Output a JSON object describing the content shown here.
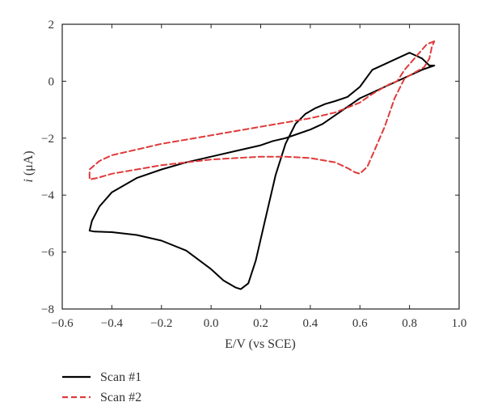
{
  "chart_data": {
    "type": "line",
    "xlabel": "E/V (vs SCE)",
    "ylabel_italic": "i",
    "ylabel_rest": " (μA)",
    "xlim": [
      -0.6,
      1.0
    ],
    "ylim": [
      -8,
      2
    ],
    "xticks": [
      "−0.6",
      "−0.4",
      "−0.2",
      "0.0",
      "0.2",
      "0.4",
      "0.6",
      "0.8",
      "1.0"
    ],
    "yticks": [
      "−8",
      "−6",
      "−4",
      "−2",
      "0",
      "2"
    ],
    "grid": false,
    "legend_position": "bottom-left, below plot",
    "series": [
      {
        "name": "Scan #1",
        "color": "#000000",
        "dash": "solid",
        "x": [
          0.9,
          0.85,
          0.8,
          0.75,
          0.7,
          0.65,
          0.6,
          0.55,
          0.5,
          0.45,
          0.4,
          0.35,
          0.3,
          0.25,
          0.2,
          0.1,
          0.0,
          -0.1,
          -0.2,
          -0.3,
          -0.4,
          -0.45,
          -0.48,
          -0.49,
          -0.47,
          -0.4,
          -0.3,
          -0.2,
          -0.1,
          0.0,
          0.05,
          0.1,
          0.12,
          0.15,
          0.18,
          0.22,
          0.26,
          0.3,
          0.34,
          0.38,
          0.42,
          0.46,
          0.5,
          0.55,
          0.6,
          0.65,
          0.7,
          0.75,
          0.8,
          0.85,
          0.88,
          0.9
        ],
        "y": [
          0.55,
          0.4,
          0.2,
          0.0,
          -0.2,
          -0.4,
          -0.6,
          -0.9,
          -1.2,
          -1.5,
          -1.7,
          -1.85,
          -2.0,
          -2.1,
          -2.25,
          -2.45,
          -2.65,
          -2.85,
          -3.1,
          -3.4,
          -3.9,
          -4.4,
          -4.9,
          -5.25,
          -5.28,
          -5.3,
          -5.4,
          -5.6,
          -5.95,
          -6.6,
          -7.0,
          -7.25,
          -7.3,
          -7.1,
          -6.3,
          -4.8,
          -3.3,
          -2.2,
          -1.5,
          -1.15,
          -0.95,
          -0.8,
          -0.7,
          -0.55,
          -0.2,
          0.4,
          0.6,
          0.8,
          1.0,
          0.8,
          0.55,
          0.55
        ]
      },
      {
        "name": "Scan #2",
        "color": "#e03a3a",
        "dash": "dashed",
        "x": [
          0.9,
          0.87,
          0.82,
          0.78,
          0.75,
          0.72,
          0.7,
          0.65,
          0.6,
          0.5,
          0.4,
          0.3,
          0.2,
          0.1,
          0.0,
          -0.1,
          -0.2,
          -0.3,
          -0.4,
          -0.45,
          -0.49,
          -0.49,
          -0.46,
          -0.4,
          -0.3,
          -0.2,
          -0.1,
          0.0,
          0.1,
          0.2,
          0.3,
          0.4,
          0.5,
          0.55,
          0.58,
          0.6,
          0.63,
          0.66,
          0.7,
          0.74,
          0.78,
          0.82,
          0.86,
          0.88,
          0.89,
          0.9
        ],
        "y": [
          1.4,
          1.3,
          0.8,
          0.4,
          0.0,
          -0.1,
          -0.2,
          -0.45,
          -0.75,
          -1.1,
          -1.3,
          -1.45,
          -1.6,
          -1.75,
          -1.9,
          -2.05,
          -2.2,
          -2.4,
          -2.6,
          -2.8,
          -3.1,
          -3.45,
          -3.4,
          -3.25,
          -3.1,
          -2.95,
          -2.85,
          -2.75,
          -2.7,
          -2.65,
          -2.65,
          -2.7,
          -2.85,
          -3.05,
          -3.2,
          -3.25,
          -3.0,
          -2.4,
          -1.6,
          -0.6,
          0.1,
          0.3,
          0.5,
          0.8,
          1.2,
          1.4
        ]
      }
    ]
  }
}
